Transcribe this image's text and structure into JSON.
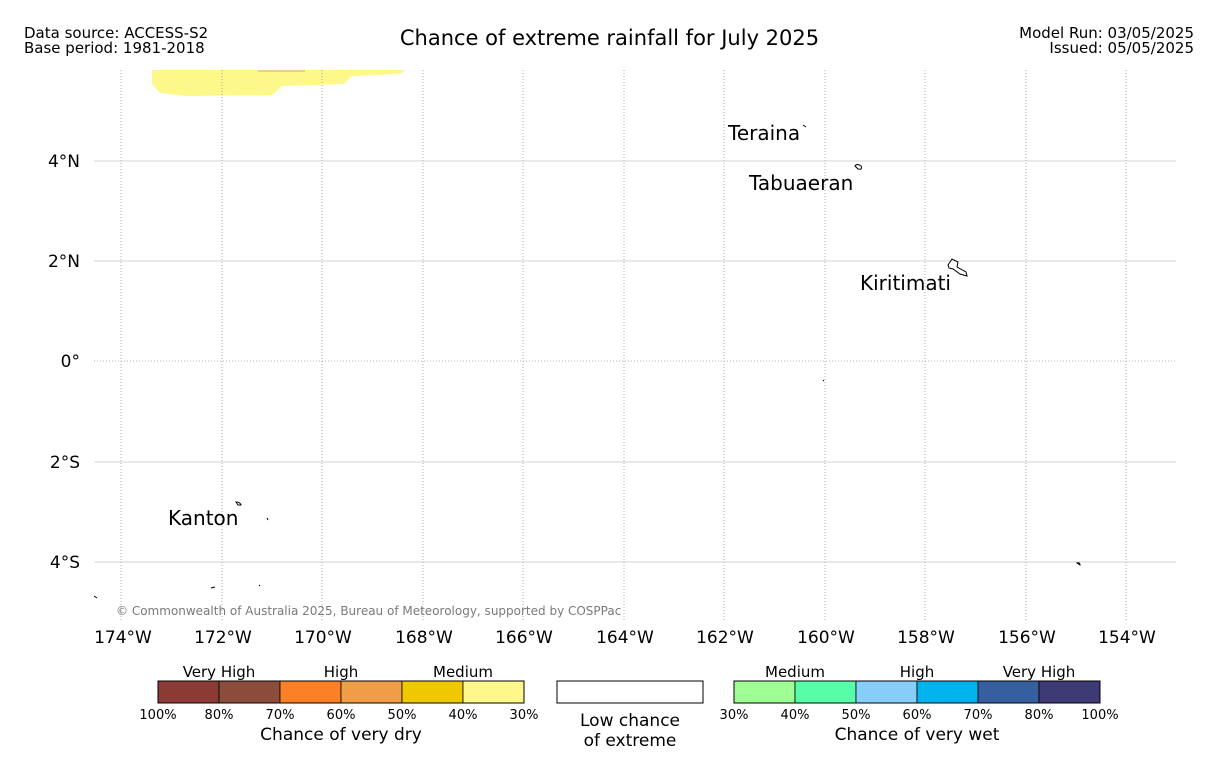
{
  "header": {
    "source_line": "Data source: ACCESS-S2",
    "base_line": "Base period: 1981-2018",
    "title": "Chance of extreme rainfall for July 2025",
    "run_line": "Model Run: 03/05/2025",
    "issued_line": "Issued: 05/05/2025"
  },
  "map": {
    "lon_ticks": [
      "174°W",
      "172°W",
      "170°W",
      "168°W",
      "166°W",
      "164°W",
      "162°W",
      "160°W",
      "158°W",
      "156°W",
      "154°W"
    ],
    "lat_ticks": [
      "4°N",
      "2°N",
      "0°",
      "2°S",
      "4°S"
    ],
    "places": [
      "Teraina",
      "Tabuaeran",
      "Kiritimati",
      "Kanton"
    ],
    "copyright": "© Commonwealth of Australia 2025, Bureau of Meteorology, supported by COSPPac",
    "shaded_region_category": "Medium 30%-40% very dry",
    "colors": {
      "grid": "#bbbbbb",
      "coast": "#000000"
    }
  },
  "legend": {
    "dry": {
      "headers": [
        "Very High",
        "High",
        "Medium"
      ],
      "ticks": [
        "100%",
        "80%",
        "70%",
        "60%",
        "50%",
        "40%",
        "30%"
      ],
      "caption": "Chance of very dry",
      "colors": [
        "#8b3a34",
        "#8b4c3b",
        "#fe8026",
        "#f09d48",
        "#f0c800",
        "#fef88a"
      ]
    },
    "neutral": {
      "caption_line1": "Low chance",
      "caption_line2": "of extreme",
      "color": "#ffffff"
    },
    "wet": {
      "headers": [
        "Medium",
        "High",
        "Very High"
      ],
      "ticks": [
        "30%",
        "40%",
        "50%",
        "60%",
        "70%",
        "80%",
        "100%"
      ],
      "caption": "Chance of very wet",
      "colors": [
        "#9efe94",
        "#57fea8",
        "#87cdfa",
        "#00b3ed",
        "#365f9f",
        "#3e3a76"
      ]
    }
  }
}
